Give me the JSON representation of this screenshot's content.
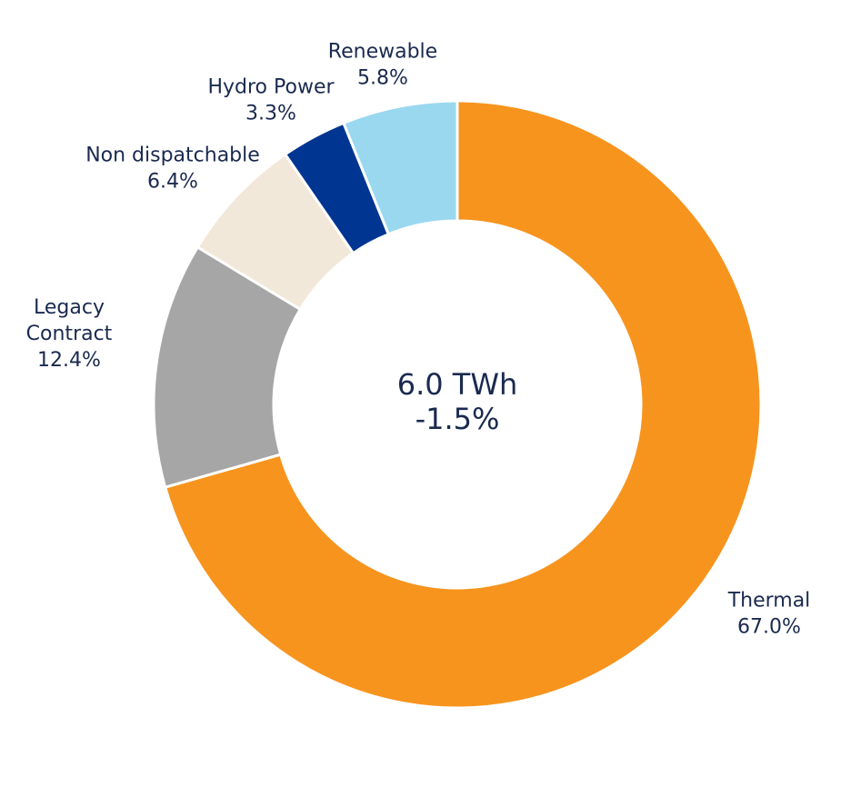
{
  "chart_data": {
    "type": "pie",
    "variant": "donut",
    "center_label": {
      "line1": "6.0 TWh",
      "line2": "-1.5%"
    },
    "slices": [
      {
        "label": "Thermal",
        "value": 67.0,
        "value_label": "67.0%",
        "color": "#F7941E"
      },
      {
        "label": "Legacy Contract",
        "label_lines": [
          "Legacy",
          "Contract"
        ],
        "value": 12.4,
        "value_label": "12.4%",
        "color": "#A6A6A6"
      },
      {
        "label": "Non dispatchable",
        "value": 6.4,
        "value_label": "6.4%",
        "color": "#F2E8D9"
      },
      {
        "label": "Hydro Power",
        "value": 3.3,
        "value_label": "3.3%",
        "color": "#003591"
      },
      {
        "label": "Renewable",
        "value": 5.8,
        "value_label": "5.8%",
        "color": "#9AD8F0"
      }
    ],
    "text_color": "#1a2a4f"
  }
}
